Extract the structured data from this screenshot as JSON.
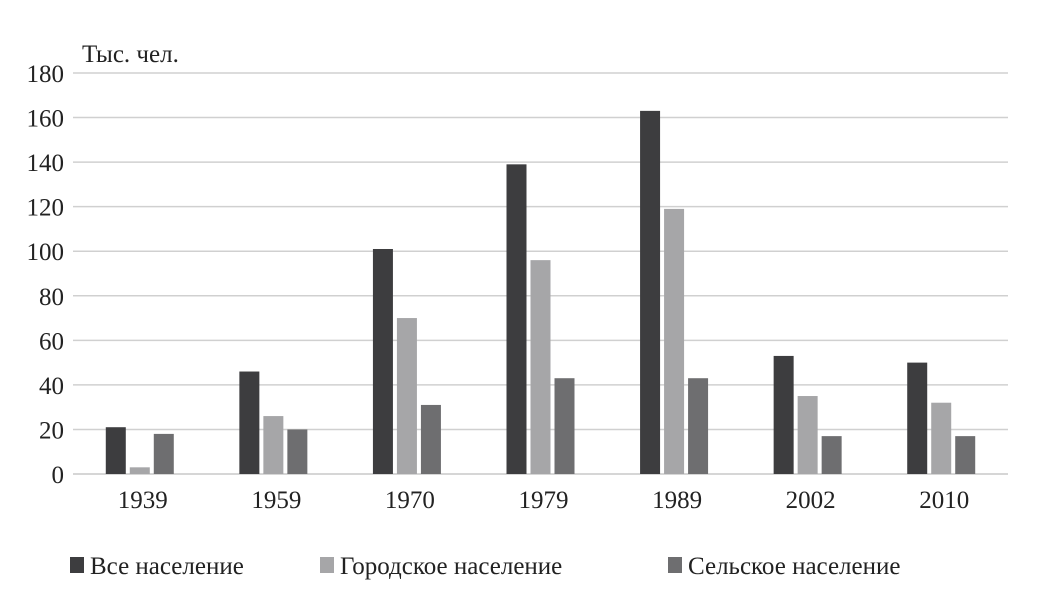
{
  "chart_data": {
    "type": "bar",
    "unit_label": "Тыс. чел.",
    "categories": [
      "1939",
      "1959",
      "1970",
      "1979",
      "1989",
      "2002",
      "2010"
    ],
    "series": [
      {
        "name": "Все население",
        "color": "#3d3d3f",
        "values": [
          21,
          46,
          101,
          139,
          163,
          53,
          50
        ]
      },
      {
        "name": "Городское население",
        "color": "#a6a6a8",
        "values": [
          3,
          26,
          70,
          96,
          119,
          35,
          32
        ]
      },
      {
        "name": "Сельское население",
        "color": "#6e6e70",
        "values": [
          18,
          20,
          31,
          43,
          43,
          17,
          17
        ]
      }
    ],
    "yticks": [
      0,
      20,
      40,
      60,
      80,
      100,
      120,
      140,
      160,
      180
    ],
    "ylim": [
      0,
      180
    ],
    "grid": true,
    "legend_position": "bottom"
  }
}
